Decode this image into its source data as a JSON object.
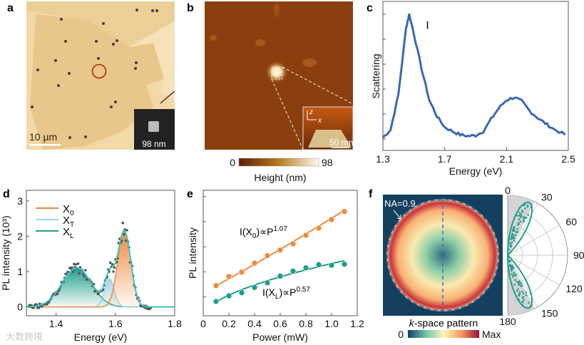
{
  "panels": {
    "a": {
      "label": "a",
      "scale_bar": "10 µm",
      "inset_label": "98 nm"
    },
    "b": {
      "label": "b",
      "inset_axis_z": "z",
      "inset_axis_x": "x",
      "inset_scale": "50 nm",
      "colorbar": {
        "min": "0",
        "max": "98",
        "title": "Height (nm)"
      }
    },
    "c": {
      "label": "c"
    },
    "d": {
      "label": "d"
    },
    "e": {
      "label": "e"
    },
    "f": {
      "label": "f",
      "na_label": "NA=0.9",
      "image_title": "k-space pattern",
      "colorbar": {
        "min": "0",
        "max": "Max"
      }
    }
  },
  "watermark": "大数跨境",
  "chart_data": [
    {
      "id": "c",
      "type": "line",
      "xlabel": "Energy (eV)",
      "ylabel": "Scattering",
      "annotation": "I",
      "xlim": [
        1.3,
        2.5
      ],
      "ylim": [
        0,
        1.0
      ],
      "xticks": [
        "1.3",
        "1.7",
        "2.1",
        "2.5"
      ],
      "color": "#3a68b4",
      "x": [
        1.3,
        1.35,
        1.4,
        1.45,
        1.47,
        1.5,
        1.55,
        1.6,
        1.65,
        1.7,
        1.75,
        1.8,
        1.85,
        1.9,
        1.95,
        2.0,
        2.05,
        2.1,
        2.15,
        2.2,
        2.25,
        2.3,
        2.35,
        2.4,
        2.48
      ],
      "y": [
        0.094,
        0.152,
        0.41,
        0.9,
        1.0,
        0.86,
        0.6,
        0.37,
        0.25,
        0.17,
        0.14,
        0.115,
        0.105,
        0.11,
        0.14,
        0.23,
        0.31,
        0.37,
        0.39,
        0.36,
        0.29,
        0.24,
        0.2,
        0.16,
        0.115
      ]
    },
    {
      "id": "d",
      "type": "area",
      "xlabel": "Energy (eV)",
      "ylabel": "PL intensity (10³)",
      "xlim": [
        1.3,
        1.8
      ],
      "ylim": [
        -0.25,
        3.3
      ],
      "xticks": [
        "1.4",
        "1.6",
        "1.8"
      ],
      "yticks": [
        "0",
        "1",
        "2",
        "3"
      ],
      "legend_position": "top-left",
      "series": [
        {
          "name": "X0",
          "label_main": "X",
          "label_sub": "0",
          "color": "#f08a3c",
          "center": 1.63,
          "amplitude": 2.15,
          "sigma": 0.022
        },
        {
          "name": "XT",
          "label_main": "X",
          "label_sub": "T",
          "color": "#9fd6e3",
          "center": 1.58,
          "amplitude": 0.8,
          "sigma": 0.016
        },
        {
          "name": "XL",
          "label_main": "X",
          "label_sub": "L",
          "color": "#1f9e8a",
          "center": 1.47,
          "amplitude": 1.1,
          "sigma": 0.05
        }
      ],
      "total_fit_color": "#3cc6c6",
      "data_color": "#555555"
    },
    {
      "id": "e",
      "type": "scatter",
      "xlabel": "Power (mW)",
      "ylabel": "PL intensity",
      "xlim": [
        0,
        1.2
      ],
      "ylim": [
        0,
        10
      ],
      "xticks": [
        "0",
        "0.2",
        "0.4",
        "0.6",
        "0.8",
        "1.0",
        "1.2"
      ],
      "x": [
        0.1,
        0.2,
        0.3,
        0.4,
        0.5,
        0.6,
        0.7,
        0.8,
        0.9,
        1.0,
        1.1
      ],
      "series": [
        {
          "name": "X0",
          "fit_prefix": "I(X",
          "fit_sub": "0",
          "fit_mid": ")∝P",
          "exponent": "1.07",
          "color": "#f08a3c",
          "y": [
            2.4,
            3.13,
            3.48,
            4.2,
            4.79,
            5.24,
            5.74,
            6.42,
            6.99,
            7.67,
            8.31
          ],
          "fit": {
            "a": 1.9,
            "b": 5.87,
            "p": 1.07
          }
        },
        {
          "name": "XL",
          "fit_prefix": "I(X",
          "fit_sub": "L",
          "fit_mid": ")∝P",
          "exponent": "0.57",
          "color": "#1f9e8a",
          "y": [
            1.14,
            1.59,
            1.84,
            2.26,
            2.63,
            3.16,
            3.56,
            3.82,
            4.07,
            4.03,
            4.11
          ],
          "fit": {
            "a": -0.03,
            "b": 4.19,
            "p": 0.57
          }
        }
      ]
    },
    {
      "id": "f",
      "type": "polar",
      "angle_ticks": [
        "0",
        "30",
        "60",
        "90",
        "120",
        "150",
        "180"
      ],
      "lobe_angles_deg": [
        22,
        158
      ],
      "color": "#1f9e8a"
    }
  ]
}
